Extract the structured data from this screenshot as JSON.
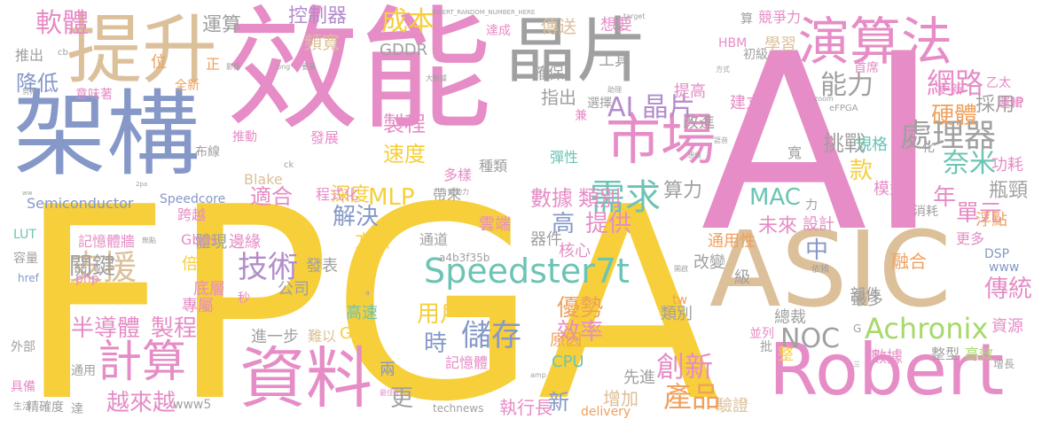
{
  "palette": {
    "yellow": "#f6cf3a",
    "pink": "#e68cc6",
    "blue": "#8598c8",
    "tan": "#dcc09a",
    "gray": "#a0a0a0",
    "green": "#a7d86a",
    "orange": "#f0a05c",
    "teal": "#6cc4b4",
    "red": "#ee7b6c",
    "purple": "#b48ccc"
  },
  "words": [
    {
      "text": "FPGA",
      "color": "yellow"
    },
    {
      "text": "AI",
      "color": "pink"
    },
    {
      "text": "效能",
      "color": "pink"
    },
    {
      "text": "架構",
      "color": "blue"
    },
    {
      "text": "ASIC",
      "color": "tan"
    },
    {
      "text": "Robert",
      "color": "pink"
    },
    {
      "text": "提升",
      "color": "tan"
    },
    {
      "text": "晶片",
      "color": "gray"
    },
    {
      "text": "資料",
      "color": "pink"
    },
    {
      "text": "演算法",
      "color": "pink"
    },
    {
      "text": "市場",
      "color": "pink"
    },
    {
      "text": "計算",
      "color": "pink"
    },
    {
      "text": "Achronix",
      "color": "green"
    },
    {
      "text": "Speedster7t",
      "color": "teal"
    },
    {
      "text": "網路",
      "color": "pink"
    },
    {
      "text": "處理器",
      "color": "gray"
    },
    {
      "text": "AI 晶片",
      "color": "purple"
    },
    {
      "text": "需求",
      "color": "teal"
    },
    {
      "text": "支援",
      "color": "tan"
    },
    {
      "text": "技術",
      "color": "purple"
    },
    {
      "text": "軟體",
      "color": "pink"
    },
    {
      "text": "成本",
      "color": "yellow"
    },
    {
      "text": "能力",
      "color": "gray"
    },
    {
      "text": "硬體",
      "color": "orange"
    },
    {
      "text": "奈米",
      "color": "teal"
    },
    {
      "text": "儲存",
      "color": "blue"
    },
    {
      "text": "創新",
      "color": "pink"
    },
    {
      "text": "產品",
      "color": "orange"
    },
    {
      "text": "傳統",
      "color": "pink"
    },
    {
      "text": "NOC",
      "color": "gray"
    },
    {
      "text": "半導體",
      "color": "pink"
    },
    {
      "text": "製程",
      "color": "pink"
    },
    {
      "text": "越來越",
      "color": "pink"
    },
    {
      "text": "關鍵",
      "color": "gray"
    },
    {
      "text": "解決",
      "color": "blue"
    },
    {
      "text": "提供",
      "color": "pink"
    },
    {
      "text": "優勢",
      "color": "orange"
    },
    {
      "text": "效率",
      "color": "pink"
    },
    {
      "text": "年",
      "color": "pink"
    },
    {
      "text": "單元",
      "color": "pink"
    },
    {
      "text": "MLP",
      "color": "yellow"
    },
    {
      "text": "MAC",
      "color": "teal"
    },
    {
      "text": "高",
      "color": "blue"
    },
    {
      "text": "用戶",
      "color": "yellow"
    },
    {
      "text": "時",
      "color": "blue"
    },
    {
      "text": "中",
      "color": "blue"
    },
    {
      "text": "更",
      "color": "gray"
    },
    {
      "text": "新",
      "color": "blue"
    },
    {
      "text": "採用",
      "color": "gray"
    },
    {
      "text": "挑戰",
      "color": "gray"
    },
    {
      "text": "降低",
      "color": "blue"
    },
    {
      "text": "運算",
      "color": "gray"
    },
    {
      "text": "控制器",
      "color": "purple"
    },
    {
      "text": "頻寬",
      "color": "tan"
    },
    {
      "text": "速度",
      "color": "yellow"
    },
    {
      "text": "數據",
      "color": "pink"
    },
    {
      "text": "類別",
      "color": "pink"
    },
    {
      "text": "算力",
      "color": "gray"
    },
    {
      "text": "未來",
      "color": "pink"
    },
    {
      "text": "適合",
      "color": "pink"
    },
    {
      "text": "深度",
      "color": "yellow"
    },
    {
      "text": "款",
      "color": "yellow"
    },
    {
      "text": "製程",
      "color": "pink"
    },
    {
      "text": "指出",
      "color": "gray"
    },
    {
      "text": "傳送",
      "color": "tan"
    },
    {
      "text": "想要",
      "color": "pink"
    },
    {
      "text": "學習",
      "color": "tan"
    },
    {
      "text": "工具",
      "color": "gray"
    },
    {
      "text": "確保",
      "color": "gray"
    },
    {
      "text": "提高",
      "color": "pink"
    },
    {
      "text": "建立",
      "color": "pink"
    },
    {
      "text": "改進",
      "color": "gray"
    },
    {
      "text": "規格",
      "color": "teal"
    },
    {
      "text": "模型",
      "color": "pink"
    },
    {
      "text": "瓶頸",
      "color": "gray"
    },
    {
      "text": "功耗",
      "color": "pink"
    },
    {
      "text": "浮點",
      "color": "orange"
    },
    {
      "text": "更多",
      "color": "pink"
    },
    {
      "text": "融合",
      "color": "orange"
    },
    {
      "text": "部件",
      "color": "gray"
    },
    {
      "text": "最多",
      "color": "gray"
    },
    {
      "text": "總裁",
      "color": "gray"
    },
    {
      "text": "資源",
      "color": "pink"
    },
    {
      "text": "數據",
      "color": "pink"
    },
    {
      "text": "整",
      "color": "yellow"
    },
    {
      "text": "整型",
      "color": "gray"
    },
    {
      "text": "高效",
      "color": "green"
    },
    {
      "text": "先進",
      "color": "gray"
    },
    {
      "text": "增加",
      "color": "tan"
    },
    {
      "text": "執行長",
      "color": "pink"
    },
    {
      "text": "驗證",
      "color": "tan"
    },
    {
      "text": "原因",
      "color": "orange"
    },
    {
      "text": "CPU",
      "color": "teal"
    },
    {
      "text": "GPU",
      "color": "yellow"
    },
    {
      "text": "兩",
      "color": "blue"
    },
    {
      "text": "記憶體",
      "color": "pink"
    },
    {
      "text": "進一步",
      "color": "gray"
    },
    {
      "text": "難以",
      "color": "tan"
    },
    {
      "text": "高速",
      "color": "teal"
    },
    {
      "text": "公司",
      "color": "gray"
    },
    {
      "text": "發表",
      "color": "gray"
    },
    {
      "text": "底層",
      "color": "pink"
    },
    {
      "text": "專屬",
      "color": "pink"
    },
    {
      "text": "倍",
      "color": "yellow"
    },
    {
      "text": "體現",
      "color": "gray"
    },
    {
      "text": "邊緣",
      "color": "pink"
    },
    {
      "text": "方法",
      "color": "yellow"
    },
    {
      "text": "器件",
      "color": "gray"
    },
    {
      "text": "核心",
      "color": "pink"
    },
    {
      "text": "通用性",
      "color": "orange"
    },
    {
      "text": "改變",
      "color": "gray"
    },
    {
      "text": "級",
      "color": "gray"
    },
    {
      "text": "設計",
      "color": "pink"
    },
    {
      "text": "雲端",
      "color": "pink"
    },
    {
      "text": "通道",
      "color": "gray"
    },
    {
      "text": "類別",
      "color": "gray"
    },
    {
      "text": "記憶體牆",
      "color": "pink"
    },
    {
      "text": "Gbps",
      "color": "pink"
    },
    {
      "text": "跨越",
      "color": "pink"
    },
    {
      "text": "程式化",
      "color": "pink"
    },
    {
      "text": "多樣",
      "color": "pink"
    },
    {
      "text": "帶來",
      "color": "gray"
    },
    {
      "text": "種類",
      "color": "gray"
    },
    {
      "text": "彈性",
      "color": "teal"
    },
    {
      "text": "Blake",
      "color": "tan"
    },
    {
      "text": "Semiconductor",
      "color": "blue"
    },
    {
      "text": "Speedcore",
      "color": "blue"
    },
    {
      "text": "布線",
      "color": "gray"
    },
    {
      "text": "推動",
      "color": "pink"
    },
    {
      "text": "發展",
      "color": "pink"
    },
    {
      "text": "意味著",
      "color": "pink"
    },
    {
      "text": "推出",
      "color": "gray"
    },
    {
      "text": "全新",
      "color": "orange"
    },
    {
      "text": "位",
      "color": "orange"
    },
    {
      "text": "正",
      "color": "orange"
    },
    {
      "text": "GDDR",
      "color": "gray"
    },
    {
      "text": "達成",
      "color": "pink"
    },
    {
      "text": "競爭力",
      "color": "pink"
    },
    {
      "text": "算",
      "color": "gray"
    },
    {
      "text": "HBM",
      "color": "pink"
    },
    {
      "text": "初級",
      "color": "gray"
    },
    {
      "text": "首席",
      "color": "pink"
    },
    {
      "text": "更新",
      "color": "pink"
    },
    {
      "text": "乙太",
      "color": "pink"
    },
    {
      "text": "邏輯",
      "color": "pink"
    },
    {
      "text": "IP",
      "color": "pink"
    },
    {
      "text": "寬",
      "color": "gray"
    },
    {
      "text": "力",
      "color": "gray"
    },
    {
      "text": "消耗",
      "color": "gray"
    },
    {
      "text": "選擇",
      "color": "gray"
    },
    {
      "text": "兼",
      "color": "pink"
    },
    {
      "text": "LUT",
      "color": "teal"
    },
    {
      "text": "容量",
      "color": "gray"
    },
    {
      "text": "php",
      "color": "pink"
    },
    {
      "text": "外部",
      "color": "gray"
    },
    {
      "text": "具備",
      "color": "pink"
    },
    {
      "text": "通用",
      "color": "gray"
    },
    {
      "text": "精確度",
      "color": "gray"
    },
    {
      "text": "達",
      "color": "gray"
    },
    {
      "text": "www5",
      "color": "gray"
    },
    {
      "text": "technews",
      "color": "gray"
    },
    {
      "text": "delivery",
      "color": "orange"
    },
    {
      "text": "a4b3f35b",
      "color": "gray"
    },
    {
      "text": "DSP",
      "color": "blue"
    },
    {
      "text": "www",
      "color": "blue"
    },
    {
      "text": "增長",
      "color": "gray"
    },
    {
      "text": "tw",
      "color": "orange"
    },
    {
      "text": "秒",
      "color": "pink"
    },
    {
      "text": "並列",
      "color": "pink"
    },
    {
      "text": "批",
      "color": "gray"
    },
    {
      "text": "G",
      "color": "gray"
    },
    {
      "text": "化",
      "color": "gray"
    },
    {
      "text": "href",
      "color": "blue"
    },
    {
      "text": "生活",
      "color": "gray"
    },
    {
      "text": "最佳化",
      "color": "pink"
    },
    {
      "text": "INSERT_RANDOM_NUMBER_HERE",
      "color": "gray"
    },
    {
      "text": "eFPGA",
      "color": "gray"
    },
    {
      "text": "cb",
      "color": "gray"
    },
    {
      "text": "ck",
      "color": "gray"
    },
    {
      "text": "amp",
      "color": "gray"
    },
    {
      "text": "推動力",
      "color": "gray"
    },
    {
      "text": "依賴",
      "color": "gray"
    },
    {
      "text": "方式",
      "color": "gray"
    },
    {
      "text": "助理",
      "color": "gray"
    },
    {
      "text": "語音",
      "color": "gray"
    },
    {
      "text": "想像",
      "color": "gray"
    },
    {
      "text": "努力",
      "color": "gray"
    },
    {
      "text": "無點",
      "color": "gray"
    },
    {
      "text": "開啟",
      "color": "gray"
    },
    {
      "text": "影像",
      "color": "gray"
    },
    {
      "text": "png",
      "color": "gray"
    },
    {
      "text": "要素",
      "color": "gray"
    },
    {
      "text": "大數據",
      "color": "gray"
    },
    {
      "text": "target",
      "color": "gray"
    },
    {
      "text": "zoom",
      "color": "gray"
    },
    {
      "text": "三",
      "color": "gray"
    },
    {
      "text": "n",
      "color": "gray"
    },
    {
      "text": "a",
      "color": "gray"
    },
    {
      "text": "ww",
      "color": "gray"
    },
    {
      "text": "2pa",
      "color": "gray"
    }
  ]
}
